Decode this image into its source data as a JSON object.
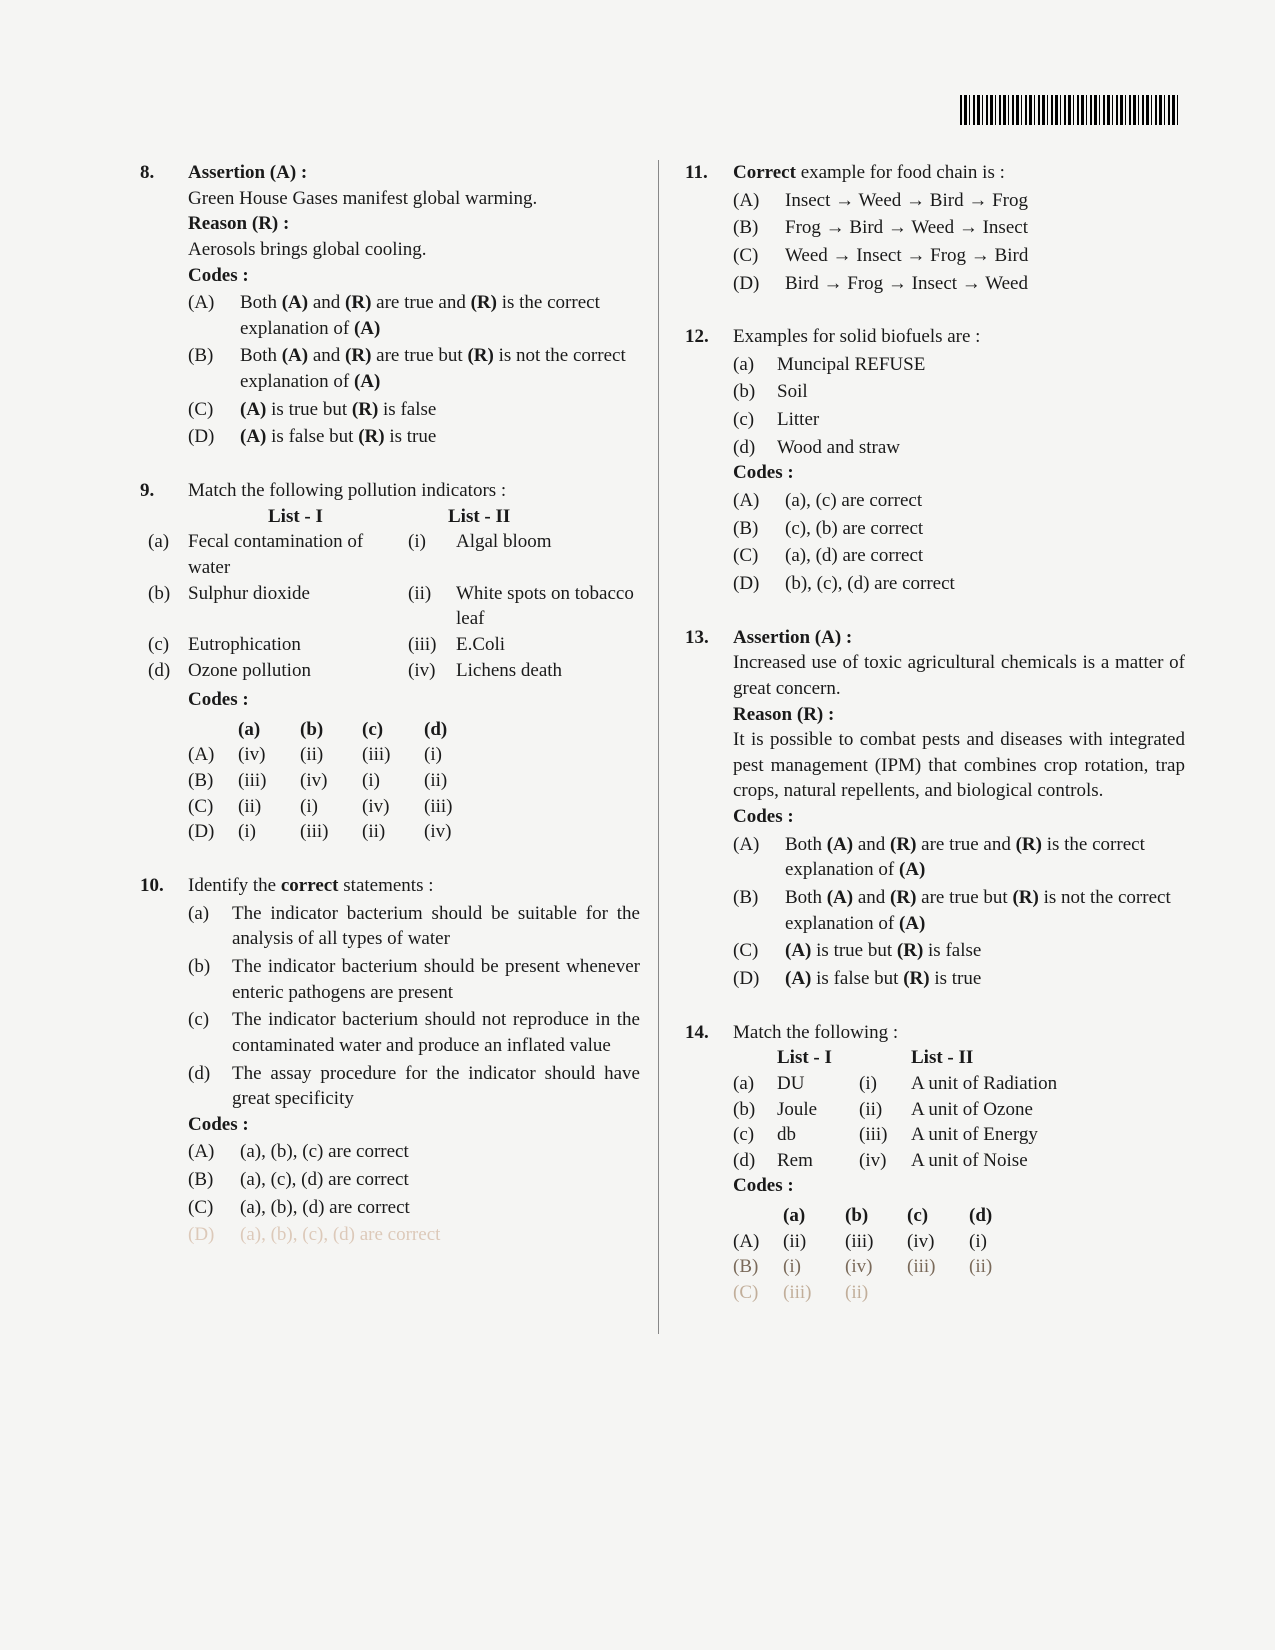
{
  "q8": {
    "num": "8.",
    "assertion_lbl": "Assertion (A) :",
    "assertion": "Green House Gases manifest global warming.",
    "reason_lbl": "Reason (R) :",
    "reason": "Aerosols brings global cooling.",
    "codes_lbl": "Codes :",
    "opts": {
      "A": {
        "lbl": "(A)",
        "pre": "Both ",
        "b1": "(A)",
        "mid1": " and ",
        "b2": "(R)",
        "mid2": " are true and ",
        "b3": "(R)",
        "tail": " is the correct explanation of ",
        "b4": "(A)"
      },
      "B": {
        "lbl": "(B)",
        "pre": "Both ",
        "b1": "(A)",
        "mid1": " and ",
        "b2": "(R)",
        "mid2": " are true but ",
        "b3": "(R)",
        "tail": " is not the correct explanation of ",
        "b4": "(A)"
      },
      "C": {
        "lbl": "(C)",
        "b1": "(A)",
        "mid": " is true but ",
        "b2": "(R)",
        "tail": " is false"
      },
      "D": {
        "lbl": "(D)",
        "b1": "(A)",
        "mid": " is false but ",
        "b2": "(R)",
        "tail": " is true"
      }
    }
  },
  "q9": {
    "num": "9.",
    "stem": "Match the following pollution indicators :",
    "list1_hdr": "List - I",
    "list2_hdr": "List - II",
    "rows": [
      {
        "a": "(a)",
        "l1": "Fecal contamination of water",
        "n": "(i)",
        "l2": "Algal bloom"
      },
      {
        "a": "(b)",
        "l1": "Sulphur dioxide",
        "n": "(ii)",
        "l2": "White spots on tobacco leaf"
      },
      {
        "a": "(c)",
        "l1": "Eutrophication",
        "n": "(iii)",
        "l2": "E.Coli"
      },
      {
        "a": "(d)",
        "l1": "Ozone pollution",
        "n": "(iv)",
        "l2": "Lichens death"
      }
    ],
    "codes_lbl": "Codes :",
    "code_hdr": [
      "(a)",
      "(b)",
      "(c)",
      "(d)"
    ],
    "code_rows": [
      {
        "p": "(A)",
        "c": [
          "(iv)",
          "(ii)",
          "(iii)",
          "(i)"
        ]
      },
      {
        "p": "(B)",
        "c": [
          "(iii)",
          "(iv)",
          "(i)",
          "(ii)"
        ]
      },
      {
        "p": "(C)",
        "c": [
          "(ii)",
          "(i)",
          "(iv)",
          "(iii)"
        ]
      },
      {
        "p": "(D)",
        "c": [
          "(i)",
          "(iii)",
          "(ii)",
          "(iv)"
        ]
      }
    ]
  },
  "q10": {
    "num": "10.",
    "stem_pre": "Identify the ",
    "stem_b": "correct",
    "stem_post": " statements :",
    "subs": [
      {
        "lbl": "(a)",
        "txt": "The indicator bacterium should be suitable for the analysis of all types of water"
      },
      {
        "lbl": "(b)",
        "txt": "The indicator bacterium should be present whenever enteric pathogens are present"
      },
      {
        "lbl": "(c)",
        "txt": "The indicator bacterium should not reproduce in the contaminated water and produce an inflated value"
      },
      {
        "lbl": "(d)",
        "txt": "The assay procedure for the indicator should have great specificity"
      }
    ],
    "codes_lbl": "Codes :",
    "opts": [
      {
        "lbl": "(A)",
        "txt": "(a), (b), (c) are correct"
      },
      {
        "lbl": "(B)",
        "txt": "(a), (c), (d) are correct"
      },
      {
        "lbl": "(C)",
        "txt": "(a), (b), (d) are correct"
      },
      {
        "lbl": "(D)",
        "txt": "(a), (b), (c), (d) are correct"
      }
    ]
  },
  "q11": {
    "num": "11.",
    "stem_b": "Correct",
    "stem_post": " example for food chain is :",
    "opts": [
      {
        "lbl": "(A)",
        "txt": "Insect → Weed → Bird → Frog"
      },
      {
        "lbl": "(B)",
        "txt": "Frog → Bird → Weed → Insect"
      },
      {
        "lbl": "(C)",
        "txt": "Weed → Insect → Frog → Bird"
      },
      {
        "lbl": "(D)",
        "txt": "Bird → Frog → Insect → Weed"
      }
    ]
  },
  "q12": {
    "num": "12.",
    "stem": "Examples for solid biofuels are :",
    "subs": [
      {
        "lbl": "(a)",
        "txt": "Muncipal REFUSE"
      },
      {
        "lbl": "(b)",
        "txt": "Soil"
      },
      {
        "lbl": "(c)",
        "txt": "Litter"
      },
      {
        "lbl": "(d)",
        "txt": "Wood and straw"
      }
    ],
    "codes_lbl": "Codes :",
    "opts": [
      {
        "lbl": "(A)",
        "txt": "(a), (c) are correct"
      },
      {
        "lbl": "(B)",
        "txt": "(c), (b) are correct"
      },
      {
        "lbl": "(C)",
        "txt": "(a), (d) are correct"
      },
      {
        "lbl": "(D)",
        "txt": "(b), (c), (d) are correct"
      }
    ]
  },
  "q13": {
    "num": "13.",
    "assertion_lbl": "Assertion (A) :",
    "assertion": "Increased use of toxic agricultural chemicals is a matter of great concern.",
    "reason_lbl": "Reason (R) :",
    "reason": "It is possible to combat pests and diseases with integrated pest management (IPM) that combines crop rotation, trap crops, natural repellents, and biological controls.",
    "codes_lbl": "Codes :",
    "opts": {
      "A": {
        "lbl": "(A)",
        "pre": "Both ",
        "b1": "(A)",
        "mid1": " and ",
        "b2": "(R)",
        "mid2": " are true and ",
        "b3": "(R)",
        "tail": " is the correct explanation of ",
        "b4": "(A)"
      },
      "B": {
        "lbl": "(B)",
        "pre": "Both ",
        "b1": "(A)",
        "mid1": " and ",
        "b2": "(R)",
        "mid2": " are true but ",
        "b3": "(R)",
        "tail": " is not the correct explanation of ",
        "b4": "(A)"
      },
      "C": {
        "lbl": "(C)",
        "b1": "(A)",
        "mid": " is true but ",
        "b2": "(R)",
        "tail": " is false"
      },
      "D": {
        "lbl": "(D)",
        "b1": "(A)",
        "mid": " is false but ",
        "b2": "(R)",
        "tail": " is true"
      }
    }
  },
  "q14": {
    "num": "14.",
    "stem": "Match the following :",
    "list1_hdr": "List - I",
    "list2_hdr": "List - II",
    "rows": [
      {
        "a": "(a)",
        "l1": "DU",
        "n": "(i)",
        "l2": "A unit of Radiation"
      },
      {
        "a": "(b)",
        "l1": "Joule",
        "n": "(ii)",
        "l2": "A unit of Ozone"
      },
      {
        "a": "(c)",
        "l1": "db",
        "n": "(iii)",
        "l2": "A unit of Energy"
      },
      {
        "a": "(d)",
        "l1": "Rem",
        "n": "(iv)",
        "l2": "A unit of Noise"
      }
    ],
    "codes_lbl": "Codes :",
    "code_hdr": [
      "(a)",
      "(b)",
      "(c)",
      "(d)"
    ],
    "code_rows": [
      {
        "p": "(A)",
        "c": [
          "(ii)",
          "(iii)",
          "(iv)",
          "(i)"
        ]
      },
      {
        "p": "(B)",
        "c": [
          "(i)",
          "(iv)",
          "(iii)",
          "(ii)"
        ]
      },
      {
        "p": "(C)",
        "c": [
          "(iii)",
          "(ii)",
          "",
          ""
        ]
      }
    ]
  }
}
